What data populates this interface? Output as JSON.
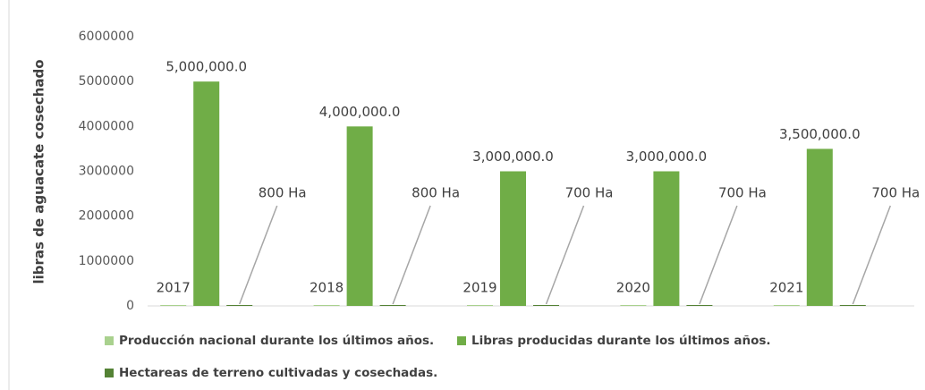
{
  "chart_data": {
    "type": "bar",
    "ylabel": "libras de aguacate cosechado",
    "categories": [
      null,
      null,
      null,
      null,
      null
    ],
    "series": [
      {
        "name": "Producción nacional durante los últimos años.",
        "color": "#a9d18e",
        "values": [
          2017,
          2018,
          2019,
          2020,
          2021
        ]
      },
      {
        "name": "Libras producidas durante los últimos años.",
        "color": "#70ad47",
        "values": [
          5000000,
          4000000,
          3000000,
          3000000,
          3500000
        ],
        "value_labels": [
          "5,000,000.0",
          "4,000,000.0",
          "3,000,000.0",
          "3,000,000.0",
          "3,500,000.0"
        ]
      },
      {
        "name": "Hectareas de terreno cultivadas y cosechadas.",
        "color": "#548235",
        "values": [
          800,
          800,
          700,
          700,
          700
        ],
        "value_labels": [
          "800 Ha",
          "800 Ha",
          "700 Ha",
          "700 Ha",
          "700 Ha"
        ]
      }
    ],
    "ylim": [
      0,
      6000000
    ],
    "yticks": [
      0,
      1000000,
      2000000,
      3000000,
      4000000,
      5000000,
      6000000
    ],
    "grid": false,
    "legend": "bottom"
  }
}
